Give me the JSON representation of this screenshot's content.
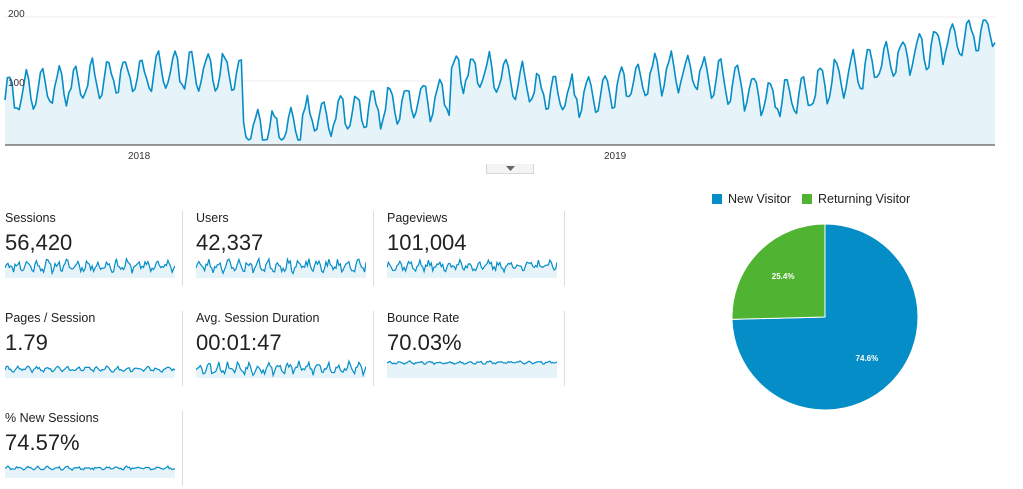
{
  "overview_chart": {
    "y_ticks": [
      "200",
      "100"
    ],
    "x_ticks": [
      "2018",
      "2019"
    ],
    "line_color": "#058dc7",
    "fill_color": "#e6f4fa",
    "collapse_icon": "caret-down-icon"
  },
  "metrics": [
    {
      "label": "Sessions",
      "value": "56,420"
    },
    {
      "label": "Users",
      "value": "42,337"
    },
    {
      "label": "Pageviews",
      "value": "101,004"
    },
    {
      "label": "Pages / Session",
      "value": "1.79"
    },
    {
      "label": "Avg. Session Duration",
      "value": "00:01:47"
    },
    {
      "label": "Bounce Rate",
      "value": "70.03%"
    },
    {
      "label": "% New Sessions",
      "value": "74.57%"
    }
  ],
  "legend": [
    {
      "label": "New Visitor",
      "color": "#058dc7"
    },
    {
      "label": "Returning Visitor",
      "color": "#50b432"
    }
  ],
  "chart_data": {
    "type": "pie",
    "categories": [
      "New Visitor",
      "Returning Visitor"
    ],
    "values": [
      74.6,
      25.4
    ],
    "slice_labels": [
      "74.6%",
      "25.4%"
    ],
    "colors": [
      "#058dc7",
      "#50b432"
    ],
    "legend_position": "top"
  }
}
